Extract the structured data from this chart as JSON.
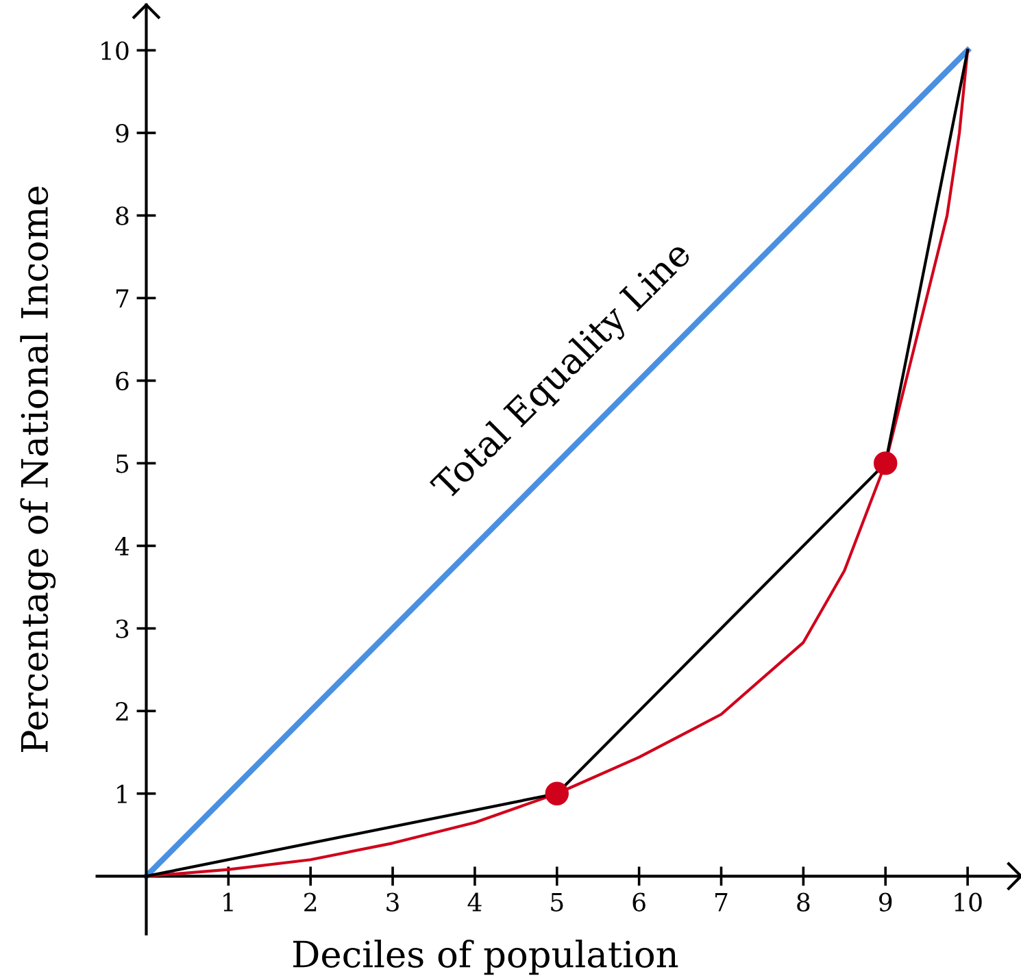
{
  "chart_data": {
    "type": "line",
    "xlabel": "Deciles of population",
    "ylabel": "Percentage of National Income",
    "xlim": [
      -0.6,
      10.65
    ],
    "ylim": [
      -0.7,
      10.55
    ],
    "xticks": [
      1,
      2,
      3,
      4,
      5,
      6,
      7,
      8,
      9,
      10
    ],
    "yticks": [
      1,
      2,
      3,
      4,
      5,
      6,
      7,
      8,
      9,
      10
    ],
    "series": [
      {
        "type": "line",
        "color": "#4a90e2",
        "x": [
          0,
          10
        ],
        "values": [
          0,
          10
        ]
      },
      {
        "type": "line",
        "color": "#d0021b",
        "x": [
          0,
          1,
          2,
          3,
          4,
          5,
          6,
          7,
          8,
          8.5,
          9,
          9.25,
          9.5,
          9.75,
          9.9,
          10
        ],
        "values": [
          0,
          0.08,
          0.2,
          0.4,
          0.65,
          1,
          1.44,
          1.96,
          2.83,
          3.7,
          5,
          6,
          7,
          8,
          9,
          10
        ]
      },
      {
        "type": "line",
        "color": "#000000",
        "x": [
          0,
          5,
          9,
          10
        ],
        "values": [
          0,
          1,
          5,
          10
        ]
      },
      {
        "type": "scatter",
        "color": "#d0021b",
        "marker": "circle",
        "x": [
          5,
          9
        ],
        "values": [
          1,
          5
        ]
      }
    ],
    "annotations": [
      "Total Equality Line"
    ]
  }
}
